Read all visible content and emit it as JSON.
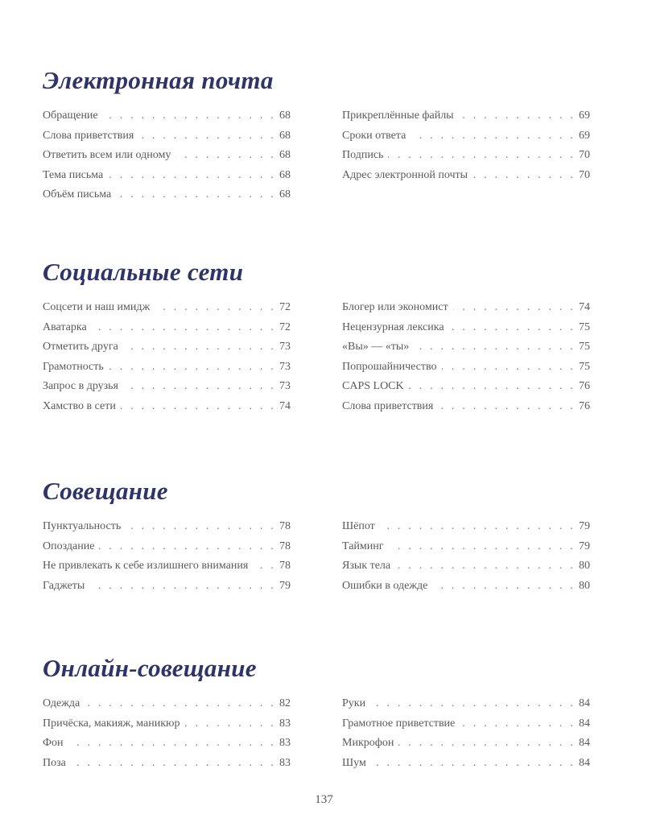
{
  "sections": [
    {
      "title": "Электронная почта",
      "left": [
        {
          "label": "Обращение",
          "page": "68"
        },
        {
          "label": "Слова приветствия",
          "page": "68"
        },
        {
          "label": "Ответить всем или одному",
          "page": "68"
        },
        {
          "label": "Тема письма",
          "page": "68"
        },
        {
          "label": "Объём письма",
          "page": "68"
        }
      ],
      "right": [
        {
          "label": "Прикреплённые файлы",
          "page": "69"
        },
        {
          "label": "Сроки ответа",
          "page": "69"
        },
        {
          "label": "Подпись",
          "page": "70"
        },
        {
          "label": "Адрес электронной почты",
          "page": "70"
        }
      ]
    },
    {
      "title": "Социальные сети",
      "left": [
        {
          "label": "Соцсети и наш имидж",
          "page": "72"
        },
        {
          "label": "Аватарка",
          "page": "72"
        },
        {
          "label": "Отметить друга",
          "page": "73"
        },
        {
          "label": "Грамотность",
          "page": "73"
        },
        {
          "label": "Запрос в друзья",
          "page": "73"
        },
        {
          "label": "Хамство в сети",
          "page": "74"
        }
      ],
      "right": [
        {
          "label": "Блогер или экономист",
          "page": "74"
        },
        {
          "label": "Нецензурная лексика",
          "page": "75"
        },
        {
          "label": "«Вы» — «ты»",
          "page": "75"
        },
        {
          "label": "Попрошайничество",
          "page": "75"
        },
        {
          "label": "CAPS LOCK",
          "page": "76"
        },
        {
          "label": "Слова приветствия",
          "page": "76"
        }
      ]
    },
    {
      "title": "Совещание",
      "left": [
        {
          "label": "Пунктуальность",
          "page": "78"
        },
        {
          "label": "Опоздание",
          "page": "78"
        },
        {
          "label": "Не привлекать к себе излишнего внимания",
          "page": "78"
        },
        {
          "label": "Гаджеты",
          "page": "79"
        }
      ],
      "right": [
        {
          "label": "Шёпот",
          "page": "79"
        },
        {
          "label": "Тайминг",
          "page": "79"
        },
        {
          "label": "Язык тела",
          "page": "80"
        },
        {
          "label": "Ошибки в одежде",
          "page": "80"
        }
      ]
    },
    {
      "title": "Онлайн-совещание",
      "left": [
        {
          "label": "Одежда",
          "page": "82"
        },
        {
          "label": "Причёска, макияж, маникюр",
          "page": "83"
        },
        {
          "label": "Фон",
          "page": "83"
        },
        {
          "label": "Поза",
          "page": "83"
        }
      ],
      "right": [
        {
          "label": "Руки",
          "page": "84"
        },
        {
          "label": "Грамотное приветствие",
          "page": "84"
        },
        {
          "label": "Микрофон",
          "page": "84"
        },
        {
          "label": "Шум",
          "page": "84"
        }
      ]
    }
  ],
  "page_number": "137",
  "colors": {
    "heading": "#2f3468",
    "text": "#5a5a5a"
  }
}
